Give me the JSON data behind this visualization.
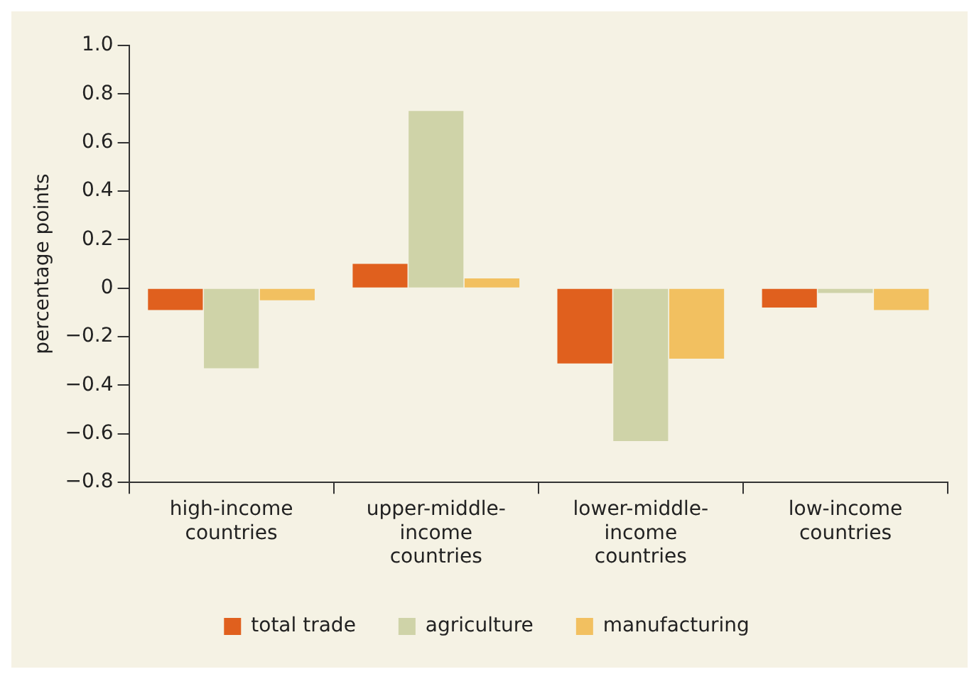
{
  "chart_data": {
    "type": "bar",
    "ylabel": "percentage points",
    "categories": [
      "high-income countries",
      "upper-middle-income countries",
      "lower-middle-income countries",
      "low-income countries"
    ],
    "series": [
      {
        "name": "total trade",
        "color": "#e0601e",
        "values": [
          -0.09,
          0.1,
          -0.31,
          -0.08
        ]
      },
      {
        "name": "agriculture",
        "color": "#cfd3a8",
        "values": [
          -0.33,
          0.73,
          -0.63,
          -0.02
        ]
      },
      {
        "name": "manufacturing",
        "color": "#f2c060",
        "values": [
          -0.05,
          0.04,
          -0.29,
          -0.09
        ]
      }
    ],
    "ylim": [
      -0.8,
      1.0
    ],
    "yticks": [
      {
        "value": 1.0,
        "label": "1.0"
      },
      0.8,
      0.6,
      0.4,
      0.2,
      {
        "value": 0,
        "label": "0"
      },
      {
        "value": -0.2,
        "label": "−0.2"
      },
      {
        "value": -0.4,
        "label": "−0.4"
      },
      {
        "value": -0.6,
        "label": "−0.6"
      },
      {
        "value": -0.8,
        "label": "−0.8"
      }
    ],
    "grid": false,
    "legend": "bottom"
  }
}
